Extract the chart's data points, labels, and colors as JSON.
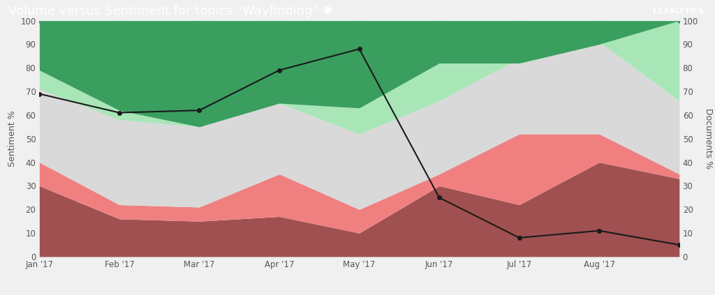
{
  "title": "Volume versus Sentiment for topics \"Wayfinding\" ✱",
  "xlabel_left": "Sentiment %",
  "xlabel_right": "Documents %",
  "x_labels": [
    "Jan '17",
    "Feb '17",
    "Mar '17",
    "Apr '17",
    "May '17",
    "Jun '17",
    "Jul '17",
    "Aug '17",
    ""
  ],
  "x_ticks": [
    0,
    1,
    2,
    3,
    4,
    5,
    6,
    7,
    8
  ],
  "ylim": [
    0,
    100
  ],
  "header_bg": "#2d526b",
  "header_text_color": "#ffffff",
  "plot_bg": "#f5f5f5",
  "grid_color": "#ffffff",
  "very_positive": [
    100,
    100,
    100,
    100,
    100,
    100,
    100,
    100,
    100
  ],
  "somewhat_positive": [
    79,
    62,
    55,
    65,
    63,
    82,
    82,
    90,
    100
  ],
  "neutral": [
    71,
    58,
    55,
    65,
    52,
    66,
    84,
    91,
    66
  ],
  "somewhat_negative": [
    40,
    22,
    21,
    35,
    20,
    35,
    52,
    52,
    35
  ],
  "very_negative": [
    30,
    16,
    15,
    17,
    10,
    30,
    22,
    40,
    33
  ],
  "total": [
    69,
    61,
    62,
    79,
    88,
    25,
    8,
    11,
    5
  ],
  "color_very_positive": "#3a9e5f",
  "color_somewhat_positive": "#a8e6b8",
  "color_neutral": "#d9d9d9",
  "color_somewhat_negative": "#f08080",
  "color_very_negative": "#a05050",
  "color_total": "#1a1a1a",
  "logo_text": "LEXALYTICS",
  "title_fontsize": 13,
  "axis_fontsize": 9,
  "tick_fontsize": 8.5,
  "legend_fontsize": 8.5
}
